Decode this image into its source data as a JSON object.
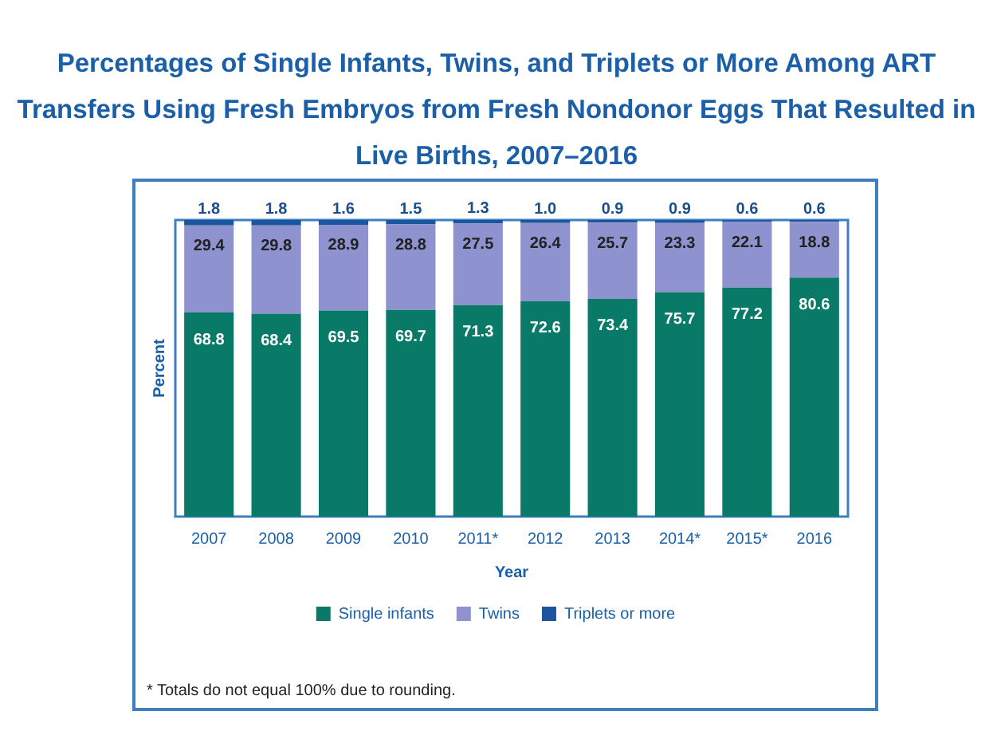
{
  "chart_data": {
    "type": "bar",
    "title": "Percentages of Single Infants, Twins, and Triplets or More Among ART Transfers Using Fresh Embryos from Fresh Nondonor Eggs That Resulted in Live Births, 2007–2016",
    "xlabel": "Year",
    "ylabel": "Percent",
    "categories": [
      "2007",
      "2008",
      "2009",
      "2010",
      "2011*",
      "2012",
      "2013",
      "2014*",
      "2015*",
      "2016"
    ],
    "stacked": true,
    "ylim": [
      0,
      100
    ],
    "tick_labels": "x",
    "data_labels": true,
    "legend": "bottom",
    "grid": false,
    "series": [
      {
        "name": "Single infants",
        "color": "#087a67",
        "values": [
          68.8,
          68.4,
          69.5,
          69.7,
          71.3,
          72.6,
          73.4,
          75.7,
          77.2,
          80.6
        ]
      },
      {
        "name": "Twins",
        "color": "#8e93cf",
        "values": [
          29.4,
          29.8,
          28.9,
          28.8,
          27.5,
          26.4,
          25.7,
          23.3,
          22.1,
          18.8
        ]
      },
      {
        "name": "Triplets or more",
        "color": "#1b55a0",
        "values": [
          1.8,
          1.8,
          1.6,
          1.5,
          1.3,
          1.0,
          0.9,
          0.9,
          0.6,
          0.6
        ],
        "value_labels": [
          "1.8",
          "1.8",
          "1.6",
          "1.5",
          "1.3",
          "1.0",
          "0.9",
          "0.9",
          "0.6",
          "0.6"
        ]
      }
    ],
    "annotations": [
      "* Totals do not equal 100% due to rounding."
    ]
  }
}
